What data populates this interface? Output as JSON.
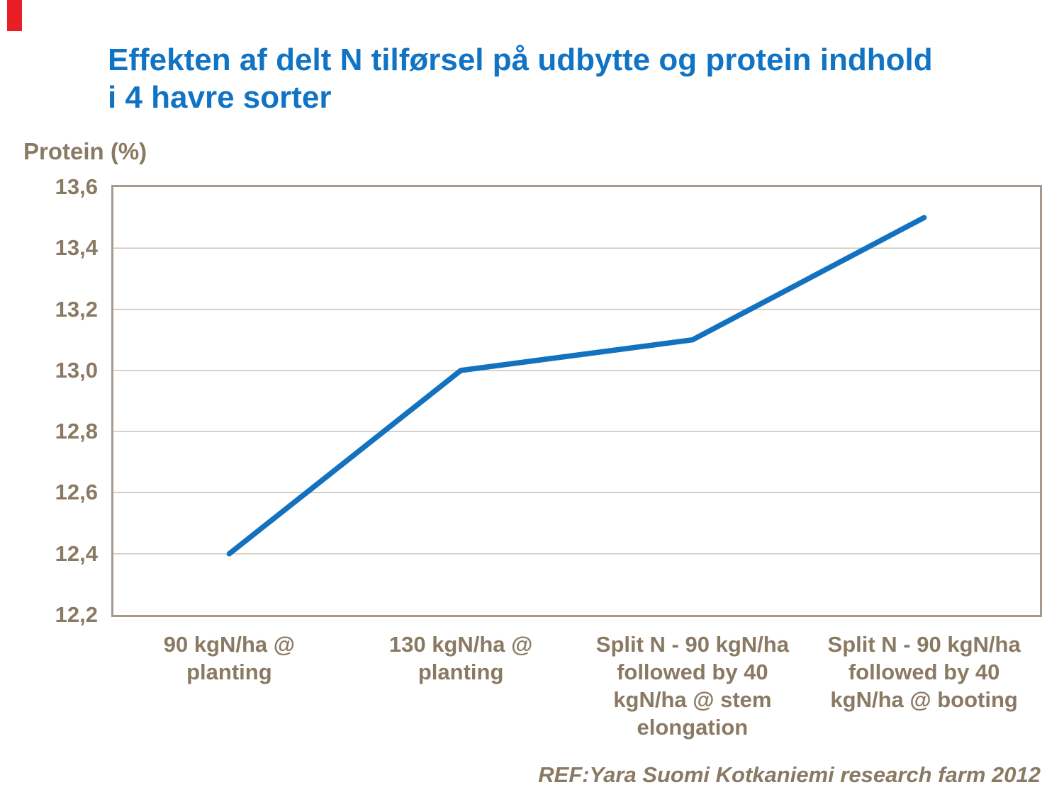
{
  "title": {
    "line1": "Effekten af delt N tilførsel på udbytte og protein indhold",
    "line2": "i 4 havre sorter"
  },
  "reference": "REF:Yara Suomi Kotkaniemi research farm 2012",
  "colors": {
    "title_blue": "#1173C4",
    "line_blue": "#1372BF",
    "tan": "#8A7963",
    "plot_border": "#A69A8C",
    "gridline": "#CCC3B6",
    "accent_red": "#E81E26"
  },
  "chart_data": {
    "type": "line",
    "title": "Effekten af delt N tilførsel på udbytte og protein indhold i 4 havre sorter",
    "ylabel": "Protein (%)",
    "categories": [
      "90 kgN/ha @ planting",
      "130 kgN/ha @ planting",
      "Split N - 90 kgN/ha followed by 40 kgN/ha @ stem elongation",
      "Split N - 90 kgN/ha followed by 40 kgN/ha @ booting"
    ],
    "series": [
      {
        "name": "Protein (%)",
        "values": [
          12.4,
          13.0,
          13.1,
          13.5
        ]
      }
    ],
    "ylim": [
      12.2,
      13.6
    ],
    "ytick_labels": [
      "13,6",
      "13,4",
      "13,2",
      "13,0",
      "12,8",
      "12,6",
      "12,4",
      "12,2"
    ],
    "decimal_separator": ",",
    "grid": true,
    "legend": false,
    "annotation": "REF:Yara Suomi Kotkaniemi research farm 2012"
  }
}
